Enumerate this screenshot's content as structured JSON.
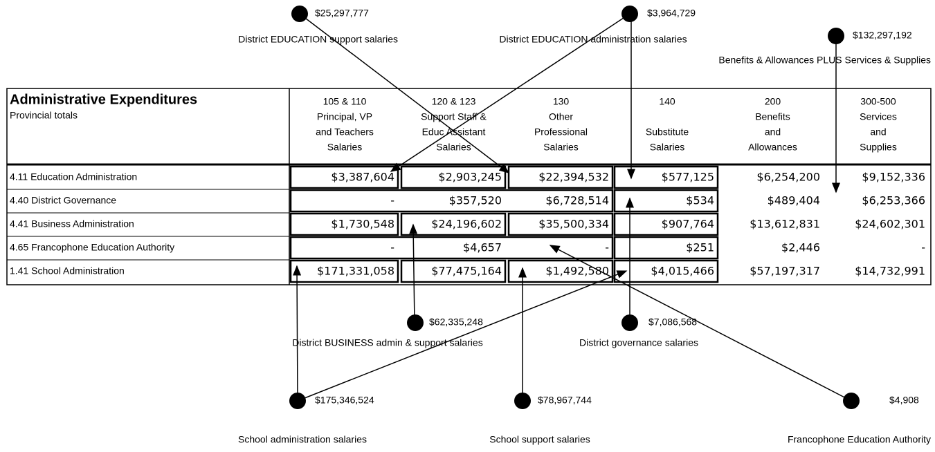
{
  "header": {
    "title": "Administrative Expenditures",
    "subtitle": "Provincial totals",
    "columns": [
      [
        "105 & 110",
        "Principal, VP",
        "and Teachers",
        "Salaries"
      ],
      [
        "120 & 123",
        "Support Staff &",
        "Educ Assistant",
        "Salaries"
      ],
      [
        "130",
        "Other",
        "Professional",
        "Salaries"
      ],
      [
        "140",
        "Substitute",
        "Salaries"
      ],
      [
        "200",
        "Benefits",
        "and",
        "Allowances"
      ],
      [
        "300-500",
        "Services",
        "and",
        "Supplies"
      ]
    ]
  },
  "table": {
    "rows": [
      [
        "4.11  Education Administration",
        "$3,387,604",
        "$2,903,245",
        "$22,394,532",
        "$577,125",
        "$6,254,200",
        "$9,152,336"
      ],
      [
        "4.40  District Governance",
        "-",
        "$357,520",
        "$6,728,514",
        "$534",
        "$489,404",
        "$6,253,366"
      ],
      [
        "4.41  Business Administration",
        "$1,730,548",
        "$24,196,602",
        "$35,500,334",
        "$907,764",
        "$13,612,831",
        "$24,602,301"
      ],
      [
        "4.65  Francophone Education Authority",
        "-",
        "$4,657",
        "-",
        "$251",
        "$2,446",
        "-"
      ],
      [
        "1.41  School Administration",
        "$171,331,058",
        "$77,475,164",
        "$1,492,580",
        "$4,015,466",
        "$57,197,317",
        "$14,732,991"
      ]
    ]
  },
  "callouts": [
    {
      "amount": "$25,297,777",
      "label": "District EDUCATION support salaries"
    },
    {
      "amount": "$3,964,729",
      "label": "District EDUCATION administration salaries"
    },
    {
      "amount": "$132,297,192",
      "label": "Benefits & Allowances PLUS Services & Supplies"
    },
    {
      "amount": "$62,335,248",
      "label": "District BUSINESS admin & support salaries"
    },
    {
      "amount": "$7,086,568",
      "label": "District governance salaries"
    },
    {
      "amount": "$175,346,524",
      "label": "School administration salaries"
    },
    {
      "amount": "$78,967,744",
      "label": "School support salaries"
    },
    {
      "amount": "$4,908",
      "label": "Francophone Education Authority"
    }
  ]
}
